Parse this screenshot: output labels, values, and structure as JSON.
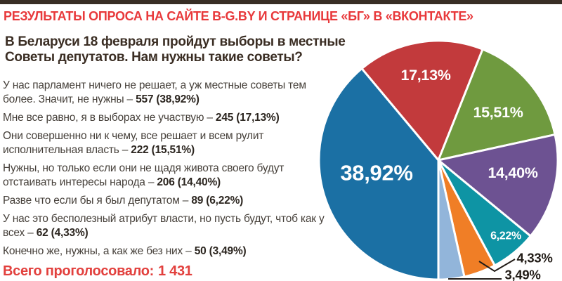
{
  "header": {
    "title": "РЕЗУЛЬТАТЫ ОПРОСА НА САЙТЕ B-G.BY И СТРАНИЦЕ «БГ» В «ВКОНТАКТЕ»"
  },
  "question": "В Беларуси 18 февраля пройдут выборы в местные Советы депутатов. Нам нужны такие советы?",
  "answers": [
    {
      "text": "У нас парламент ничего не решает, а уж местные советы тем более. Значит, не нужны – ",
      "value": "557 (38,92%)"
    },
    {
      "text": "Мне все равно, я в выборах не участвую – ",
      "value": "245 (17,13%)"
    },
    {
      "text": "Они совершенно ни к чему, все решает и всем рулит исполнительная власть – ",
      "value": "222 (15,51%)"
    },
    {
      "text": "Нужны, но только если они не щадя живота своего будут отстаивать интересы народа – ",
      "value": "206 (14,40%)"
    },
    {
      "text": "Разве что если бы я был депутатом – ",
      "value": "89 (6,22%)"
    },
    {
      "text": "У нас это бесполезный атрибут власти, но пусть будут, чтоб как у всех – ",
      "value": "62 (4,33%)"
    },
    {
      "text": "Конечно же, нужны, а как же без них – ",
      "value": "50 (3,49%)"
    }
  ],
  "footer": {
    "label": "Всего проголосовало:",
    "total": "1 431"
  },
  "colors": {
    "topbar": "#382e25",
    "accent_red": "#e8393b",
    "question_text": "#3a2d23",
    "body_text": "#46403a",
    "outside_label_text": "#221c17",
    "background": "#ffffff"
  },
  "chart_data": {
    "type": "pie",
    "total_votes": 1431,
    "start_angle_deg": -39.89,
    "slices": [
      {
        "answer_index": 2,
        "label": "Мне все равно, я в выборах не участвую",
        "count": 245,
        "percent": 17.13,
        "percent_label": "17,13%",
        "color": "#c23a3c"
      },
      {
        "answer_index": 3,
        "label": "Они совершенно ни к чему, все решает и всем рулит исполнительная власть",
        "count": 222,
        "percent": 15.51,
        "percent_label": "15,51%",
        "color": "#6f9a3f"
      },
      {
        "answer_index": 4,
        "label": "Нужны, но только если они не щадя живота своего будут отстаивать интересы народа",
        "count": 206,
        "percent": 14.4,
        "percent_label": "14,40%",
        "color": "#6d5292"
      },
      {
        "answer_index": 5,
        "label": "Разве что если бы я был депутатом",
        "count": 89,
        "percent": 6.22,
        "percent_label": "6,22%",
        "color": "#0e94a4"
      },
      {
        "answer_index": 6,
        "label": "У нас это бесполезный атрибут власти, но пусть будут, чтоб как у всех",
        "count": 62,
        "percent": 4.33,
        "percent_label": "4,33%",
        "color": "#f07e26"
      },
      {
        "answer_index": 7,
        "label": "Конечно же, нужны, а как же без них",
        "count": 50,
        "percent": 3.49,
        "percent_label": "3,49%",
        "color": "#92b5da"
      },
      {
        "answer_index": 1,
        "label": "У нас парламент ничего не решает, а уж местные советы тем более. Значит, не нужны",
        "count": 557,
        "percent": 38.92,
        "percent_label": "38,92%",
        "color": "#1b70a4"
      }
    ]
  }
}
